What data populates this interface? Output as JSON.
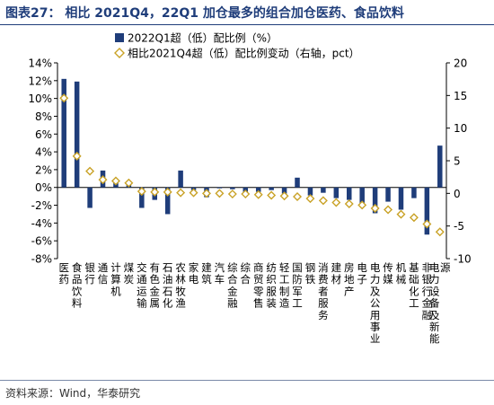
{
  "page": {
    "title": "图表27：  相比 2021Q4，22Q1 加仓最多的组合加仓医药、食品饮料",
    "source": "资料来源：Wind，华泰研究"
  },
  "chart_data": {
    "type": "bar",
    "title": "图表27：  相比 2021Q4，22Q1 加仓最多的组合加仓医药、食品饮料",
    "categories": [
      "医药",
      "食品饮料",
      "银行",
      "通信",
      "计算机",
      "煤炭",
      "交通运输",
      "有色金属",
      "石油石化",
      "农林牧渔",
      "家电",
      "建筑",
      "汽车",
      "综合金融",
      "综合",
      "商贸零售",
      "纺织服装",
      "轻工制造",
      "国防军工",
      "钢铁",
      "消费者服务",
      "建材",
      "房地产",
      "电子",
      "电力及公用事业",
      "传媒",
      "机械",
      "基础化工",
      "非银行金融",
      "电力设备及新能源"
    ],
    "series": [
      {
        "name": "2022Q1超（低）配比例（%）",
        "axis": "left",
        "type": "bar",
        "values": [
          12.2,
          11.9,
          -2.3,
          1.9,
          0.9,
          0.4,
          -2.3,
          -1.4,
          -3.0,
          1.9,
          -0.3,
          -1.1,
          -0.1,
          -0.2,
          -0.6,
          -0.5,
          -0.3,
          -0.7,
          1.1,
          -0.9,
          -0.6,
          -1.2,
          -1.4,
          -2.0,
          -2.9,
          -1.6,
          -2.5,
          -1.2,
          -5.3,
          4.7
        ]
      },
      {
        "name": "相比2021Q4超（低）配比例变动（右轴，pct）",
        "axis": "right",
        "type": "scatter",
        "values": [
          14.6,
          5.7,
          3.4,
          2.1,
          1.9,
          1.6,
          0.3,
          0.2,
          0.2,
          0.1,
          0.1,
          0.0,
          0.0,
          -0.1,
          -0.1,
          -0.2,
          -0.3,
          -0.4,
          -0.5,
          -0.8,
          -1.1,
          -1.4,
          -1.6,
          -1.8,
          -2.3,
          -2.5,
          -3.2,
          -3.7,
          -4.7,
          -5.9
        ]
      }
    ],
    "y_left": {
      "min": -8,
      "max": 14,
      "step": 2,
      "format": "percent"
    },
    "y_right": {
      "min": -10,
      "max": 20,
      "step": 5
    },
    "legend_position": "top",
    "grid": false,
    "colors": {
      "bar": "#1f3d7a",
      "marker_edge": "#c9a227",
      "marker_fill": "#ffffff"
    }
  }
}
